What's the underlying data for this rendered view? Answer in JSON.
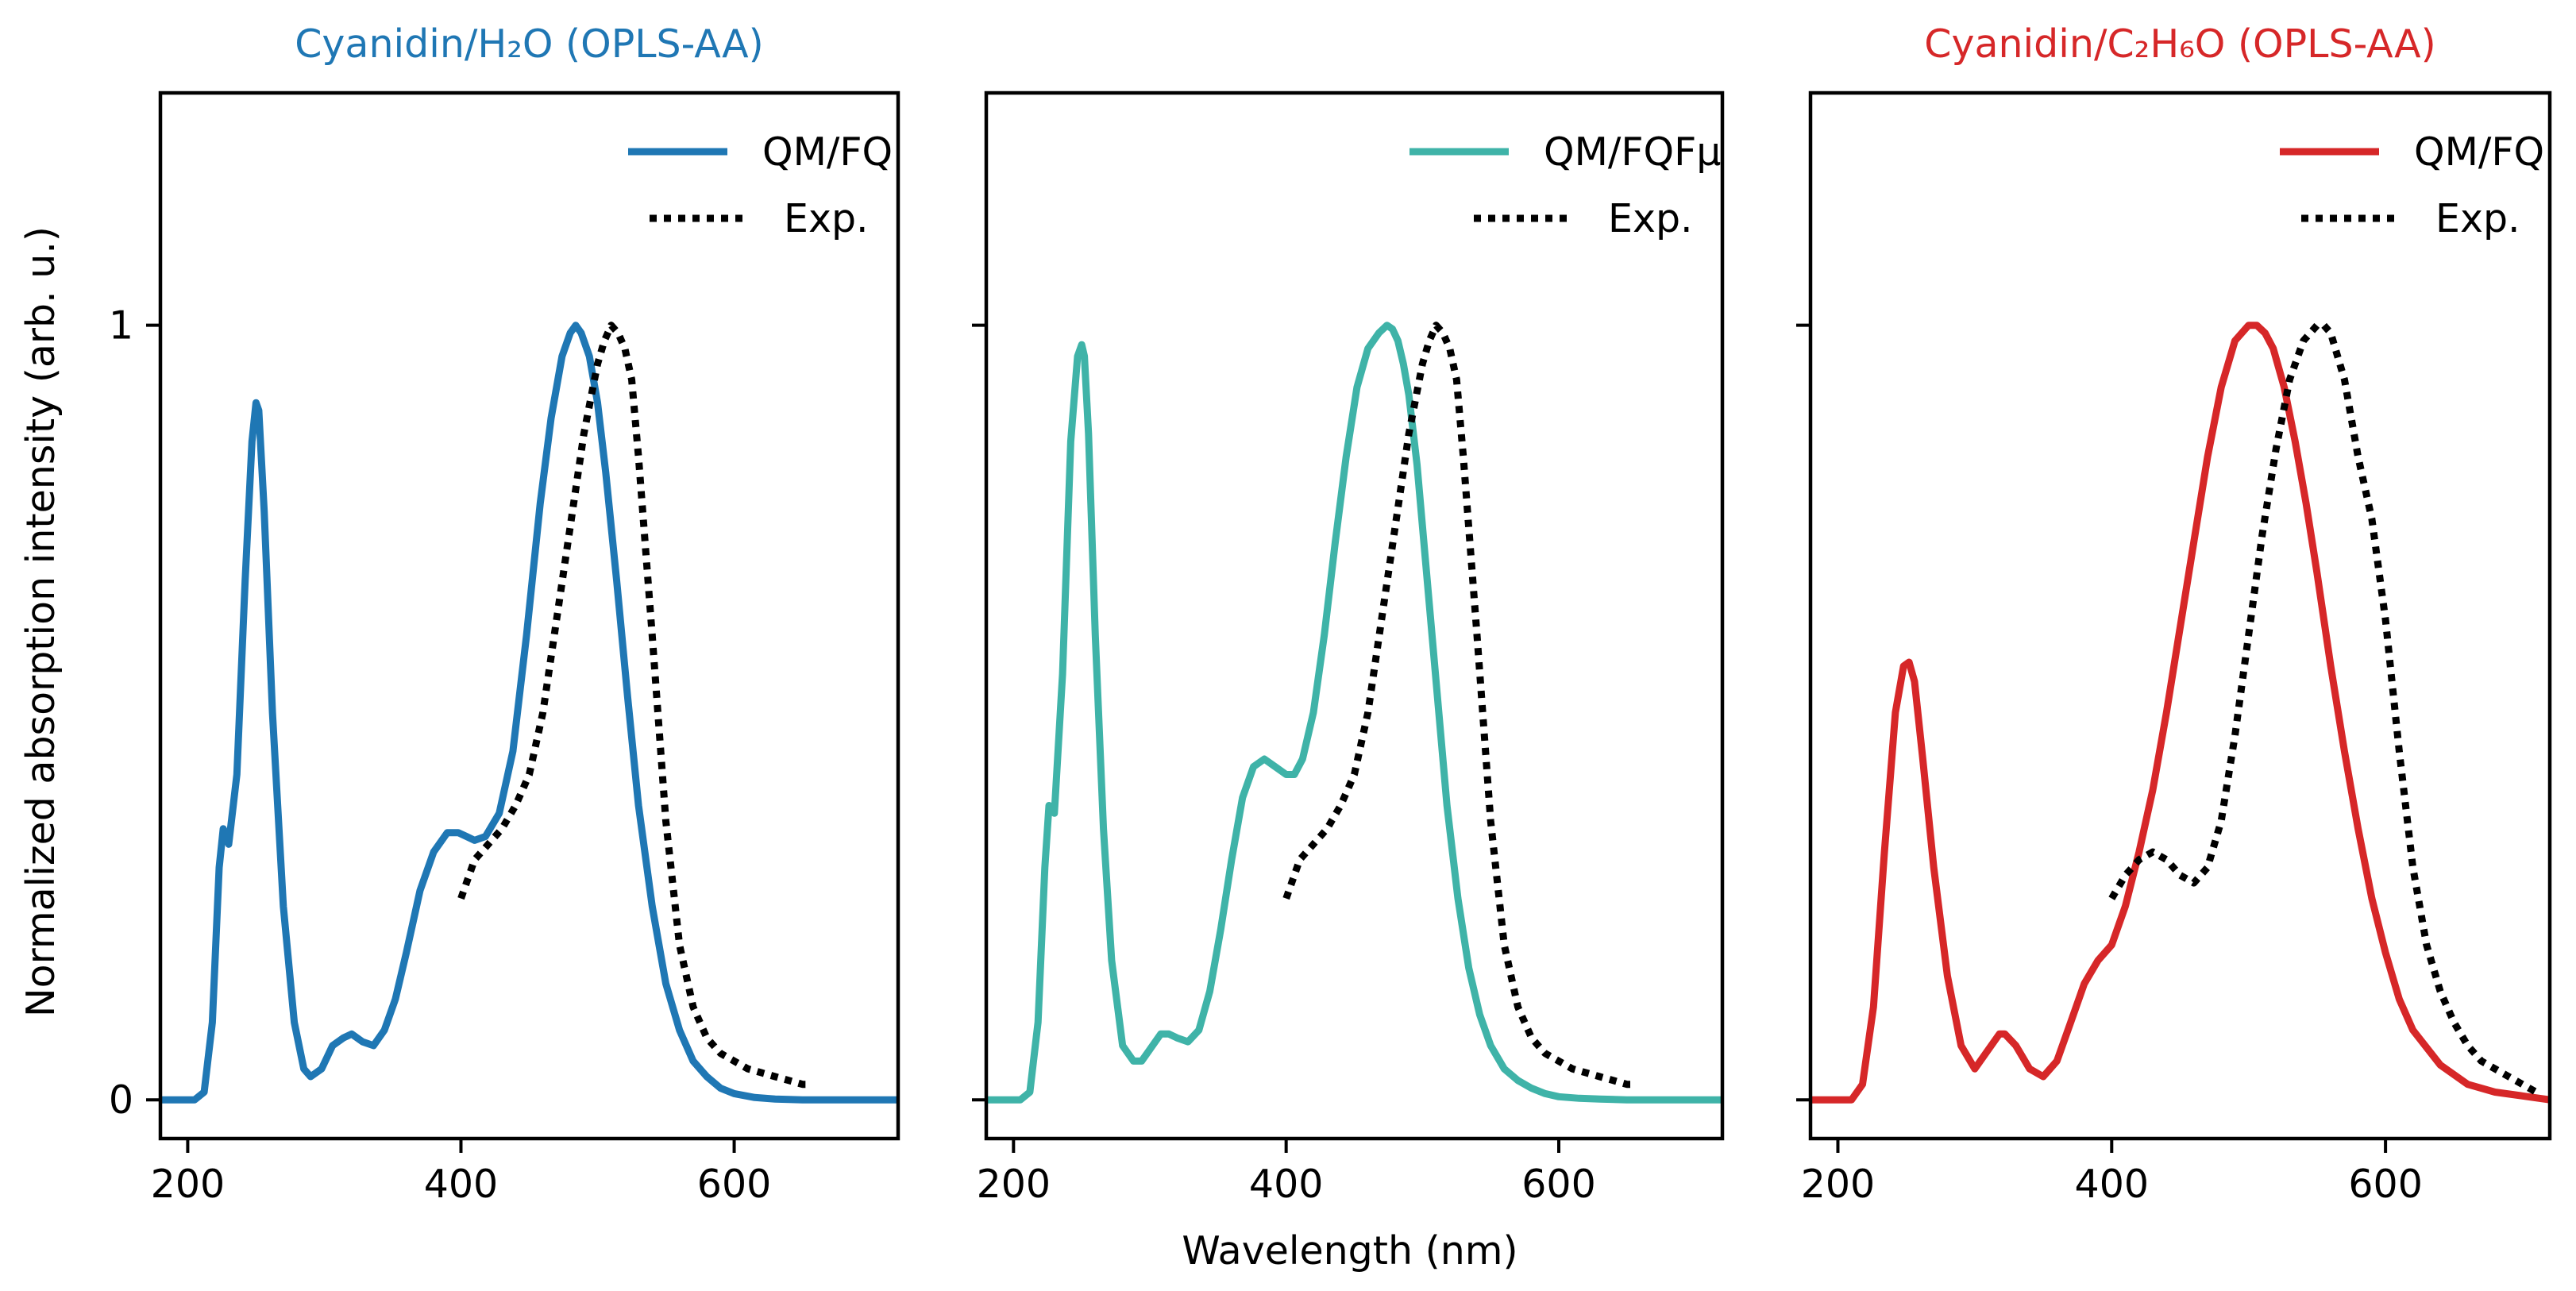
{
  "figure": {
    "ylabel": "Normalized absorption intensity (arb. u.)",
    "xlabel": "Wavelength (nm)"
  },
  "colors": {
    "blue": "#1f77b4",
    "teal": "#3fb3a8",
    "red": "#d62728",
    "exp": "#000000"
  },
  "chart_data": [
    {
      "type": "line",
      "title": "Cyanidin/H₂O (OPLS-AA)",
      "title_color": "#1f77b4",
      "xlim": [
        180,
        720
      ],
      "ylim": [
        -0.05,
        1.3
      ],
      "xticks": [
        200,
        400,
        600
      ],
      "yticks": [
        0,
        1
      ],
      "show_yticklabels": true,
      "legend_position": "top-right",
      "series": [
        {
          "name": "QM/FQ",
          "color": "#1f77b4",
          "style": "solid",
          "x": [
            180,
            205,
            212,
            218,
            223,
            226,
            230,
            236,
            242,
            247,
            250,
            252,
            256,
            262,
            270,
            278,
            285,
            290,
            298,
            306,
            314,
            320,
            328,
            336,
            344,
            352,
            360,
            370,
            380,
            390,
            398,
            404,
            410,
            418,
            428,
            438,
            448,
            458,
            466,
            474,
            480,
            484,
            488,
            494,
            500,
            506,
            514,
            522,
            530,
            540,
            550,
            560,
            570,
            580,
            590,
            600,
            615,
            630,
            650,
            680,
            720
          ],
          "y": [
            0,
            0,
            0.01,
            0.1,
            0.3,
            0.35,
            0.33,
            0.42,
            0.67,
            0.85,
            0.9,
            0.89,
            0.76,
            0.5,
            0.25,
            0.1,
            0.04,
            0.03,
            0.04,
            0.07,
            0.08,
            0.085,
            0.075,
            0.07,
            0.09,
            0.13,
            0.19,
            0.27,
            0.32,
            0.345,
            0.345,
            0.34,
            0.335,
            0.34,
            0.37,
            0.45,
            0.6,
            0.77,
            0.88,
            0.96,
            0.99,
            1.0,
            0.99,
            0.96,
            0.9,
            0.81,
            0.67,
            0.52,
            0.38,
            0.25,
            0.15,
            0.09,
            0.05,
            0.03,
            0.015,
            0.008,
            0.003,
            0.001,
            0,
            0,
            0
          ]
        },
        {
          "name": "Exp.",
          "color": "#000000",
          "style": "dotted",
          "x": [
            400,
            410,
            420,
            430,
            440,
            450,
            460,
            470,
            480,
            490,
            500,
            505,
            510,
            515,
            520,
            525,
            530,
            540,
            550,
            560,
            570,
            580,
            590,
            600,
            610,
            620,
            630,
            640,
            650,
            655
          ],
          "y": [
            0.26,
            0.31,
            0.33,
            0.35,
            0.38,
            0.42,
            0.5,
            0.62,
            0.74,
            0.86,
            0.95,
            0.98,
            1.0,
            0.99,
            0.97,
            0.93,
            0.83,
            0.6,
            0.36,
            0.2,
            0.12,
            0.08,
            0.06,
            0.05,
            0.04,
            0.035,
            0.03,
            0.025,
            0.02,
            0.02
          ]
        }
      ]
    },
    {
      "type": "line",
      "title": "",
      "title_color": "#3fb3a8",
      "xlim": [
        180,
        720
      ],
      "ylim": [
        -0.05,
        1.3
      ],
      "xticks": [
        200,
        400,
        600
      ],
      "yticks": [
        0,
        1
      ],
      "show_yticklabels": false,
      "legend_position": "top-right",
      "series": [
        {
          "name": "QM/FQFμ",
          "color": "#3fb3a8",
          "style": "solid",
          "x": [
            180,
            205,
            212,
            218,
            223,
            226,
            230,
            236,
            242,
            247,
            250,
            252,
            255,
            260,
            266,
            272,
            280,
            288,
            294,
            300,
            308,
            314,
            320,
            328,
            336,
            344,
            352,
            360,
            368,
            376,
            384,
            392,
            400,
            406,
            412,
            420,
            428,
            436,
            444,
            452,
            460,
            468,
            474,
            478,
            482,
            486,
            490,
            496,
            502,
            510,
            518,
            526,
            534,
            542,
            550,
            560,
            570,
            580,
            590,
            600,
            615,
            630,
            650,
            680,
            720
          ],
          "y": [
            0,
            0,
            0.01,
            0.1,
            0.3,
            0.38,
            0.37,
            0.55,
            0.85,
            0.96,
            0.975,
            0.96,
            0.86,
            0.6,
            0.35,
            0.18,
            0.07,
            0.05,
            0.05,
            0.065,
            0.085,
            0.085,
            0.08,
            0.075,
            0.09,
            0.14,
            0.22,
            0.31,
            0.39,
            0.43,
            0.44,
            0.43,
            0.42,
            0.42,
            0.44,
            0.5,
            0.6,
            0.72,
            0.83,
            0.92,
            0.97,
            0.99,
            1.0,
            0.995,
            0.98,
            0.95,
            0.91,
            0.82,
            0.7,
            0.54,
            0.38,
            0.26,
            0.17,
            0.11,
            0.07,
            0.04,
            0.025,
            0.015,
            0.008,
            0.004,
            0.002,
            0.001,
            0,
            0,
            0
          ]
        },
        {
          "name": "Exp.",
          "color": "#000000",
          "style": "dotted",
          "x": [
            400,
            410,
            420,
            430,
            440,
            450,
            460,
            470,
            480,
            490,
            500,
            505,
            510,
            515,
            520,
            525,
            530,
            540,
            550,
            560,
            570,
            580,
            590,
            600,
            610,
            620,
            630,
            640,
            650,
            655
          ],
          "y": [
            0.26,
            0.31,
            0.33,
            0.35,
            0.38,
            0.42,
            0.5,
            0.62,
            0.74,
            0.86,
            0.95,
            0.98,
            1.0,
            0.99,
            0.97,
            0.93,
            0.83,
            0.6,
            0.36,
            0.2,
            0.12,
            0.08,
            0.06,
            0.05,
            0.04,
            0.035,
            0.03,
            0.025,
            0.02,
            0.02
          ]
        }
      ]
    },
    {
      "type": "line",
      "title": "Cyanidin/C₂H₆O (OPLS-AA)",
      "title_color": "#d62728",
      "xlim": [
        180,
        720
      ],
      "ylim": [
        -0.05,
        1.3
      ],
      "xticks": [
        200,
        400,
        600
      ],
      "yticks": [
        0,
        1
      ],
      "show_yticklabels": false,
      "legend_position": "top-right",
      "series": [
        {
          "name": "QM/FQ",
          "color": "#d62728",
          "style": "solid",
          "x": [
            180,
            210,
            218,
            226,
            234,
            242,
            248,
            252,
            256,
            262,
            270,
            280,
            290,
            300,
            310,
            318,
            322,
            330,
            340,
            350,
            360,
            370,
            380,
            390,
            400,
            410,
            420,
            430,
            440,
            450,
            460,
            470,
            480,
            490,
            500,
            506,
            512,
            518,
            526,
            534,
            542,
            550,
            560,
            570,
            580,
            590,
            600,
            610,
            620,
            640,
            660,
            680,
            700,
            720
          ],
          "y": [
            0,
            0,
            0.02,
            0.12,
            0.32,
            0.5,
            0.56,
            0.565,
            0.54,
            0.44,
            0.3,
            0.16,
            0.07,
            0.04,
            0.065,
            0.085,
            0.085,
            0.07,
            0.04,
            0.03,
            0.05,
            0.1,
            0.15,
            0.18,
            0.2,
            0.25,
            0.32,
            0.4,
            0.5,
            0.61,
            0.72,
            0.83,
            0.92,
            0.98,
            1.0,
            1.0,
            0.99,
            0.97,
            0.92,
            0.85,
            0.77,
            0.68,
            0.56,
            0.45,
            0.35,
            0.26,
            0.19,
            0.13,
            0.09,
            0.045,
            0.02,
            0.01,
            0.005,
            0
          ]
        },
        {
          "name": "Exp.",
          "color": "#000000",
          "style": "dotted",
          "x": [
            400,
            410,
            420,
            430,
            440,
            450,
            460,
            470,
            480,
            490,
            500,
            510,
            520,
            530,
            540,
            550,
            555,
            560,
            570,
            580,
            590,
            600,
            610,
            620,
            630,
            640,
            650,
            660,
            670,
            680,
            690,
            700,
            710
          ],
          "y": [
            0.26,
            0.29,
            0.31,
            0.32,
            0.31,
            0.29,
            0.28,
            0.3,
            0.36,
            0.47,
            0.6,
            0.73,
            0.84,
            0.93,
            0.98,
            1.0,
            1.0,
            0.99,
            0.93,
            0.83,
            0.75,
            0.62,
            0.45,
            0.3,
            0.2,
            0.14,
            0.1,
            0.07,
            0.05,
            0.04,
            0.03,
            0.02,
            0.01
          ]
        }
      ]
    }
  ]
}
